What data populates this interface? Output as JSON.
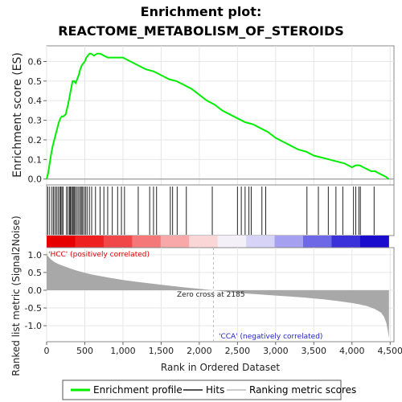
{
  "chart_data": {
    "type": "line",
    "title_line1": "Enrichment plot:",
    "title_line2": "REACTOME_METABOLISM_OF_STEROIDS",
    "ylabel_es": "Enrichment score (ES)",
    "ylabel_metric": "Ranked list metric (Signal2Noise)",
    "xlabel": "Rank in Ordered Dataset",
    "xlim": [
      0,
      4550
    ],
    "es_ylim": [
      -0.03,
      0.68
    ],
    "metric_ylim": [
      -1.45,
      1.2
    ],
    "x_ticks": [
      0,
      500,
      1000,
      1500,
      2000,
      2500,
      3000,
      3500,
      4000,
      4500
    ],
    "x_tick_labels": [
      "0",
      "500",
      "1,000",
      "1,500",
      "2,000",
      "2,500",
      "3,000",
      "3,500",
      "4,000",
      "4,500"
    ],
    "es_ticks": [
      0.0,
      0.1,
      0.2,
      0.3,
      0.4,
      0.5,
      0.6
    ],
    "es_tick_labels": [
      "0.0",
      "0.1",
      "0.2",
      "0.3",
      "0.4",
      "0.5",
      "0.6"
    ],
    "metric_ticks": [
      1.0,
      0.5,
      0.0,
      -0.5,
      -1.0
    ],
    "metric_tick_labels": [
      "1.0",
      "0.5",
      "0.0",
      "-0.5",
      "-1.0"
    ],
    "enrichment_profile": {
      "name": "Enrichment profile",
      "color": "#00ee00",
      "x": [
        0,
        20,
        40,
        60,
        80,
        100,
        120,
        140,
        160,
        180,
        200,
        220,
        250,
        280,
        300,
        320,
        340,
        360,
        380,
        400,
        420,
        440,
        460,
        480,
        500,
        520,
        540,
        560,
        580,
        620,
        660,
        700,
        750,
        800,
        850,
        900,
        950,
        1000,
        1050,
        1100,
        1200,
        1300,
        1400,
        1500,
        1600,
        1700,
        1800,
        1900,
        2000,
        2100,
        2200,
        2300,
        2400,
        2500,
        2600,
        2700,
        2800,
        2900,
        3000,
        3100,
        3200,
        3300,
        3400,
        3500,
        3600,
        3700,
        3800,
        3900,
        3950,
        4000,
        4050,
        4100,
        4150,
        4200,
        4250,
        4300,
        4350,
        4400,
        4450,
        4480
      ],
      "y": [
        0.0,
        0.03,
        0.08,
        0.13,
        0.17,
        0.2,
        0.23,
        0.26,
        0.29,
        0.31,
        0.32,
        0.32,
        0.33,
        0.38,
        0.42,
        0.46,
        0.5,
        0.5,
        0.49,
        0.51,
        0.53,
        0.56,
        0.58,
        0.59,
        0.6,
        0.62,
        0.63,
        0.64,
        0.64,
        0.63,
        0.64,
        0.64,
        0.63,
        0.62,
        0.62,
        0.62,
        0.62,
        0.62,
        0.61,
        0.6,
        0.58,
        0.56,
        0.55,
        0.53,
        0.51,
        0.5,
        0.48,
        0.46,
        0.43,
        0.4,
        0.38,
        0.35,
        0.33,
        0.31,
        0.29,
        0.28,
        0.26,
        0.24,
        0.21,
        0.19,
        0.17,
        0.15,
        0.14,
        0.12,
        0.11,
        0.1,
        0.09,
        0.08,
        0.07,
        0.06,
        0.07,
        0.07,
        0.06,
        0.05,
        0.04,
        0.04,
        0.03,
        0.02,
        0.01,
        0.0
      ]
    },
    "hits": {
      "name": "Hits",
      "positions": [
        15,
        40,
        70,
        90,
        110,
        130,
        150,
        170,
        185,
        200,
        215,
        260,
        280,
        300,
        310,
        325,
        340,
        350,
        365,
        380,
        400,
        420,
        440,
        455,
        470,
        490,
        510,
        530,
        560,
        590,
        640,
        700,
        750,
        800,
        860,
        930,
        980,
        1020,
        1200,
        1350,
        1400,
        1440,
        1620,
        1650,
        1710,
        1830,
        2170,
        2500,
        2550,
        2600,
        2650,
        2680,
        2820,
        2870,
        3410,
        3560,
        3690,
        3790,
        3880,
        4020,
        4050,
        4090,
        4110,
        4290
      ]
    },
    "ranking_metric": {
      "name": "Ranking metric scores",
      "x": [
        0,
        10,
        30,
        60,
        100,
        150,
        200,
        300,
        400,
        500,
        600,
        800,
        1000,
        1200,
        1400,
        1600,
        1800,
        2000,
        2185,
        2400,
        2600,
        2800,
        3000,
        3200,
        3400,
        3600,
        3800,
        4000,
        4100,
        4200,
        4300,
        4380,
        4420,
        4450,
        4470,
        4485
      ],
      "y": [
        1.1,
        0.98,
        0.93,
        0.86,
        0.8,
        0.74,
        0.7,
        0.62,
        0.55,
        0.49,
        0.44,
        0.36,
        0.29,
        0.23,
        0.18,
        0.13,
        0.08,
        0.04,
        0.0,
        -0.05,
        -0.09,
        -0.12,
        -0.15,
        -0.18,
        -0.21,
        -0.25,
        -0.3,
        -0.36,
        -0.4,
        -0.45,
        -0.53,
        -0.63,
        -0.75,
        -0.92,
        -1.15,
        -1.35
      ]
    },
    "heatmap_colors": [
      "#e60000",
      "#ee2020",
      "#f04848",
      "#f47878",
      "#f8a8a8",
      "#fbd6d6",
      "#f4f0f8",
      "#d6d3f6",
      "#a5a0ef",
      "#6f68e6",
      "#3a31da",
      "#1a0ccc"
    ],
    "zero_cross": 2185,
    "annotations": {
      "zero_cross_label": "Zero cross at 2185",
      "pos_label": "'HCC' (positively correlated)",
      "neg_label": "'CCA' (negatively correlated)"
    },
    "legend": {
      "enrichment_label": "Enrichment profile",
      "hits_label": "Hits",
      "metric_label": "Ranking metric scores"
    }
  }
}
